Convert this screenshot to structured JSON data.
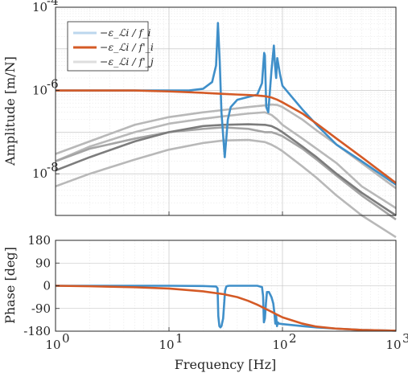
{
  "chart_data": [
    {
      "type": "line",
      "panel": "magnitude",
      "xscale": "log",
      "yscale": "log",
      "xlim": [
        1,
        1000
      ],
      "ylim": [
        1e-09,
        0.0001
      ],
      "ylabel": "Amplitude [m/N]",
      "y_tick_labels": [
        "10",
        "10",
        "10"
      ],
      "y_tick_exponents": [
        "-4",
        "-6",
        "-8"
      ],
      "y_tick_values": [
        0.0001,
        1e-06,
        1e-08
      ],
      "grid": true,
      "legend_position": "top-left",
      "legend": [
        "−ε_ℒi / f_i",
        "−ε_ℒi / f'_i",
        "−ε_ℒi / f'_j"
      ],
      "series": [
        {
          "name": "−ε_ℒi / f_i",
          "color": "#3f8fc9",
          "x": [
            1,
            2,
            5,
            10,
            15,
            20,
            24,
            26,
            27,
            28,
            29,
            31,
            33,
            35,
            40,
            50,
            60,
            66,
            69,
            70,
            72,
            75,
            80,
            84,
            86,
            88,
            90,
            95,
            100,
            150,
            200,
            300,
            500,
            1000
          ],
          "y": [
            1e-06,
            1e-06,
            1e-06,
            1e-06,
            1e-06,
            1.1e-06,
            1.6e-06,
            4e-06,
            4.2e-05,
            5e-06,
            3e-07,
            2.5e-08,
            2e-07,
            4e-07,
            6e-07,
            7e-07,
            8e-07,
            1.5e-06,
            8e-06,
            7e-06,
            4e-07,
            3e-07,
            3e-06,
            1.2e-05,
            4e-06,
            2e-06,
            6e-06,
            2.5e-06,
            1.3e-06,
            3.5e-07,
            1.5e-07,
            5e-08,
            2e-08,
            5.5e-09
          ]
        },
        {
          "name": "−ε_ℒi / f'_i",
          "color": "#d45a26",
          "x": [
            1,
            2,
            5,
            10,
            20,
            30,
            40,
            50,
            60,
            70,
            80,
            90,
            100,
            150,
            200,
            300,
            500,
            1000
          ],
          "y": [
            1e-06,
            1e-06,
            1e-06,
            9.5e-07,
            8.8e-07,
            8.3e-07,
            8e-07,
            7.8e-07,
            7.6e-07,
            7.3e-07,
            6.8e-07,
            6e-07,
            5.2e-07,
            2.8e-07,
            1.6e-07,
            7e-08,
            2.5e-08,
            6e-09
          ]
        },
        {
          "name": "−ε_ℒi / f'_j",
          "color": "#b8b8b8",
          "x": [
            1,
            2,
            5,
            10,
            20,
            30,
            50,
            70,
            80,
            90,
            100,
            150,
            200,
            300,
            500,
            1000
          ],
          "y": [
            2e-08,
            4.5e-08,
            1e-07,
            1.6e-07,
            2.1e-07,
            2.4e-07,
            2.8e-07,
            3e-07,
            2.6e-07,
            2e-07,
            1.5e-07,
            7e-08,
            4e-08,
            1.8e-08,
            5e-09,
            1.5e-09
          ]
        },
        {
          "name": "",
          "color": "#b8b8b8",
          "x": [
            1,
            2,
            5,
            10,
            20,
            30,
            50,
            70,
            80,
            90,
            100,
            150,
            200,
            300,
            500,
            1000
          ],
          "y": [
            3e-08,
            6e-08,
            1.5e-07,
            2.3e-07,
            3e-07,
            3.4e-07,
            4e-07,
            4.4e-07,
            4.6e-07,
            4.5e-07,
            4e-07,
            2e-07,
            1.1e-07,
            5e-08,
            1.8e-08,
            4.5e-09
          ]
        },
        {
          "name": "",
          "color": "#a4a4a4",
          "x": [
            1,
            2,
            5,
            10,
            20,
            30,
            50,
            70,
            80,
            90,
            100,
            150,
            200,
            300,
            500,
            1000
          ],
          "y": [
            2e-08,
            4e-08,
            7e-08,
            1e-07,
            1.2e-07,
            1.3e-07,
            1.2e-07,
            1e-07,
            1e-07,
            9e-08,
            8e-08,
            4e-08,
            2.2e-08,
            9e-09,
            3e-09,
            8e-10
          ]
        },
        {
          "name": "",
          "color": "#7c7c7c",
          "x": [
            1,
            2,
            5,
            10,
            20,
            30,
            50,
            70,
            80,
            90,
            100,
            150,
            200,
            300,
            500,
            1000
          ],
          "y": [
            1.2e-08,
            2.5e-08,
            6e-08,
            1e-07,
            1.4e-07,
            1.5e-07,
            1.55e-07,
            1.5e-07,
            1.4e-07,
            1.2e-07,
            1e-07,
            4.5e-08,
            2.5e-08,
            1e-08,
            3.5e-09,
            1e-09
          ]
        },
        {
          "name": "",
          "color": "#b8b8b8",
          "x": [
            1,
            2,
            5,
            10,
            20,
            30,
            50,
            70,
            80,
            90,
            100,
            150,
            200,
            300,
            500,
            1000
          ],
          "y": [
            5e-09,
            1e-08,
            2.2e-08,
            3.8e-08,
            5.5e-08,
            6.3e-08,
            6.5e-08,
            5.8e-08,
            5e-08,
            4.2e-08,
            3.5e-08,
            1.5e-08,
            8e-09,
            3e-09,
            1e-09,
            3e-10
          ]
        }
      ]
    },
    {
      "type": "line",
      "panel": "phase",
      "xscale": "log",
      "xlim": [
        1,
        1000
      ],
      "ylim": [
        -180,
        180
      ],
      "xlabel": "Frequency [Hz]",
      "ylabel": "Phase [deg]",
      "x_tick_labels": [
        "10",
        "10",
        "10",
        "10"
      ],
      "x_tick_exponents": [
        "0",
        "1",
        "2",
        "3"
      ],
      "x_tick_values": [
        1,
        10,
        100,
        1000
      ],
      "y_tick_labels": [
        "180",
        "90",
        "0",
        "-90",
        "-180"
      ],
      "y_tick_values": [
        180,
        90,
        0,
        -90,
        -180
      ],
      "grid": true,
      "series": [
        {
          "name": "−ε_ℒi / f_i",
          "color": "#3f8fc9",
          "x": [
            1,
            10,
            20,
            26,
            26.8,
            27.2,
            27.8,
            28.4,
            29,
            30,
            31.2,
            32,
            32.8,
            34,
            40,
            50,
            60,
            66,
            67.5,
            68.6,
            70,
            71.5,
            73,
            76,
            80,
            83,
            85,
            86.5,
            88,
            89.5,
            91,
            93,
            100,
            150,
            200,
            300,
            500,
            1000
          ],
          "y": [
            0,
            0,
            -1,
            -3,
            -10,
            -120,
            -160,
            -165,
            -160,
            -130,
            -20,
            -3,
            -1,
            0,
            0,
            0,
            0,
            -5,
            -40,
            -145,
            -130,
            -70,
            -25,
            -25,
            -45,
            -70,
            -110,
            -150,
            -120,
            -160,
            -145,
            -150,
            -152,
            -160,
            -165,
            -170,
            -175,
            -178
          ]
        },
        {
          "name": "−ε_ℒi / f'_i",
          "color": "#d45a26",
          "x": [
            1,
            2,
            5,
            10,
            20,
            30,
            40,
            50,
            60,
            70,
            80,
            90,
            100,
            150,
            200,
            300,
            500,
            1000
          ],
          "y": [
            0,
            -2,
            -6,
            -11,
            -22,
            -33,
            -45,
            -60,
            -75,
            -90,
            -103,
            -115,
            -125,
            -150,
            -162,
            -170,
            -175,
            -178
          ]
        }
      ]
    }
  ]
}
